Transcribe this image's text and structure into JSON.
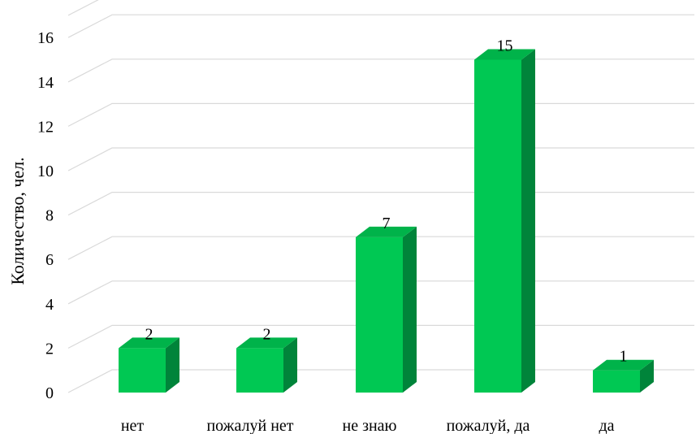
{
  "chart_data": {
    "type": "bar",
    "title": "",
    "xlabel": "",
    "ylabel": "Количество, чел.",
    "categories": [
      "нет",
      "пожалуй нет",
      "не знаю",
      "пожалуй, да",
      "да"
    ],
    "values": [
      2,
      2,
      7,
      15,
      1
    ],
    "ylim": [
      0,
      17
    ],
    "yticks": [
      0,
      2,
      4,
      6,
      8,
      10,
      12,
      14,
      16
    ],
    "grid": true,
    "data_labels": true,
    "three_d": true,
    "colors": {
      "bar_front": "#00c853",
      "bar_top": "#00b34a",
      "bar_side": "#00843a",
      "grid": "#d9d9d9",
      "text": "#000000"
    }
  }
}
